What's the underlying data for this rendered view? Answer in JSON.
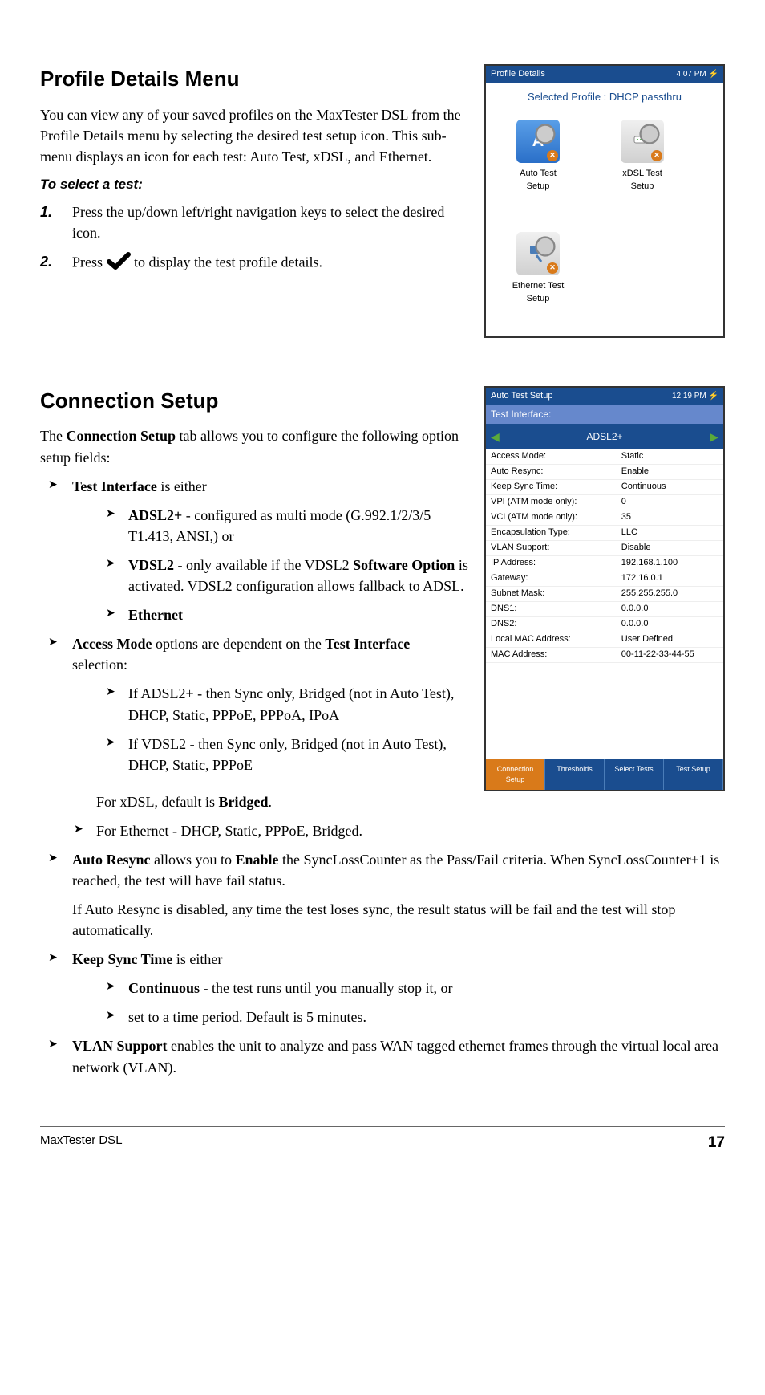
{
  "section1": {
    "title": "Profile Details Menu",
    "intro": "You can view any of your saved profiles on the MaxTester DSL from the Profile Details menu by selecting the desired test setup icon. This sub-menu displays an icon for each test: Auto Test, xDSL, and Ethernet.",
    "to_select": "To select a test:",
    "step1_num": "1.",
    "step1": "Press the up/down left/right navigation keys to select the desired icon.",
    "step2_num": "2.",
    "step2_a": "Press ",
    "step2_b": " to display the test profile details."
  },
  "screen1": {
    "title": "Profile Details",
    "time": "4:07 PM",
    "selected": "Selected Profile : DHCP passthru",
    "icons": {
      "auto": "Auto Test\nSetup",
      "xdsl": "xDSL Test\nSetup",
      "eth": "Ethernet Test\nSetup"
    }
  },
  "section2": {
    "title": "Connection Setup",
    "intro_a": "The ",
    "intro_b": "Connection Setup",
    "intro_c": " tab allows you to configure the following option setup fields:",
    "ti_a": "Test Interface",
    "ti_b": " is either",
    "adsl_a": "ADSL2+",
    "adsl_b": " - configured as multi mode (G.992.1/2/3/5 T1.413, ANSI,) or",
    "vdsl_a": "VDSL2",
    "vdsl_b": " - only available if the VDSL2 ",
    "vdsl_c": "Software Option",
    "vdsl_d": " is activated. VDSL2 configuration allows fallback to ADSL.",
    "eth": "Ethernet",
    "am_a": "Access Mode",
    "am_b": " options are dependent on the ",
    "am_c": "Test Interface",
    "am_d": " selection:",
    "am1": "If ADSL2+ - then Sync only, Bridged (not in Auto Test), DHCP, Static, PPPoE, PPPoA, IPoA",
    "am2": "If VDSL2 - then Sync only, Bridged (not in Auto Test), DHCP, Static, PPPoE",
    "am2_note_a": "For xDSL, default is ",
    "am2_note_b": "Bridged",
    "am2_note_c": ".",
    "am3": "For Ethernet - DHCP, Static, PPPoE, Bridged.",
    "ar_a": "Auto Resync",
    "ar_b": " allows you to ",
    "ar_c": "Enable",
    "ar_d": " the SyncLossCounter as the Pass/Fail criteria. When SyncLossCounter+1 is reached, the test will have fail status.",
    "ar_note": "If Auto Resync is disabled, any time the test loses sync, the result status will be fail and the test will stop automatically.",
    "ks_a": "Keep Sync Time",
    "ks_b": " is either",
    "ks1_a": "Continuous",
    "ks1_b": " - the test runs until you manually stop it, or",
    "ks2": "set to a time period. Default is 5 minutes.",
    "vlan_a": "VLAN Support",
    "vlan_b": " enables the unit to analyze and pass WAN tagged ethernet frames through the virtual local area network (VLAN)."
  },
  "screen2": {
    "title": "Auto Test Setup",
    "time": "12:19 PM",
    "header": "Test Interface:",
    "interface": "ADSL2+",
    "rows": [
      [
        "Access Mode:",
        "Static"
      ],
      [
        "Auto Resync:",
        "Enable"
      ],
      [
        "Keep Sync Time:",
        "Continuous"
      ],
      [
        "VPI (ATM mode only):",
        "0"
      ],
      [
        "VCI (ATM mode only):",
        "35"
      ],
      [
        "Encapsulation Type:",
        "LLC"
      ],
      [
        "VLAN Support:",
        "Disable"
      ],
      [
        "IP Address:",
        "192.168.1.100"
      ],
      [
        "Gateway:",
        "172.16.0.1"
      ],
      [
        "Subnet Mask:",
        "255.255.255.0"
      ],
      [
        "DNS1:",
        "0.0.0.0"
      ],
      [
        "DNS2:",
        "0.0.0.0"
      ],
      [
        "Local MAC Address:",
        "User Defined"
      ],
      [
        "MAC Address:",
        "00-11-22-33-44-55"
      ]
    ],
    "tabs": [
      "Connection Setup",
      "Thresholds",
      "Select Tests",
      "Test Setup"
    ]
  },
  "footer": {
    "product": "MaxTester DSL",
    "page": "17"
  },
  "colors": {
    "titlebar": "#1a4d8f",
    "accent": "#d97a1a",
    "link": "#1a4d8f"
  }
}
